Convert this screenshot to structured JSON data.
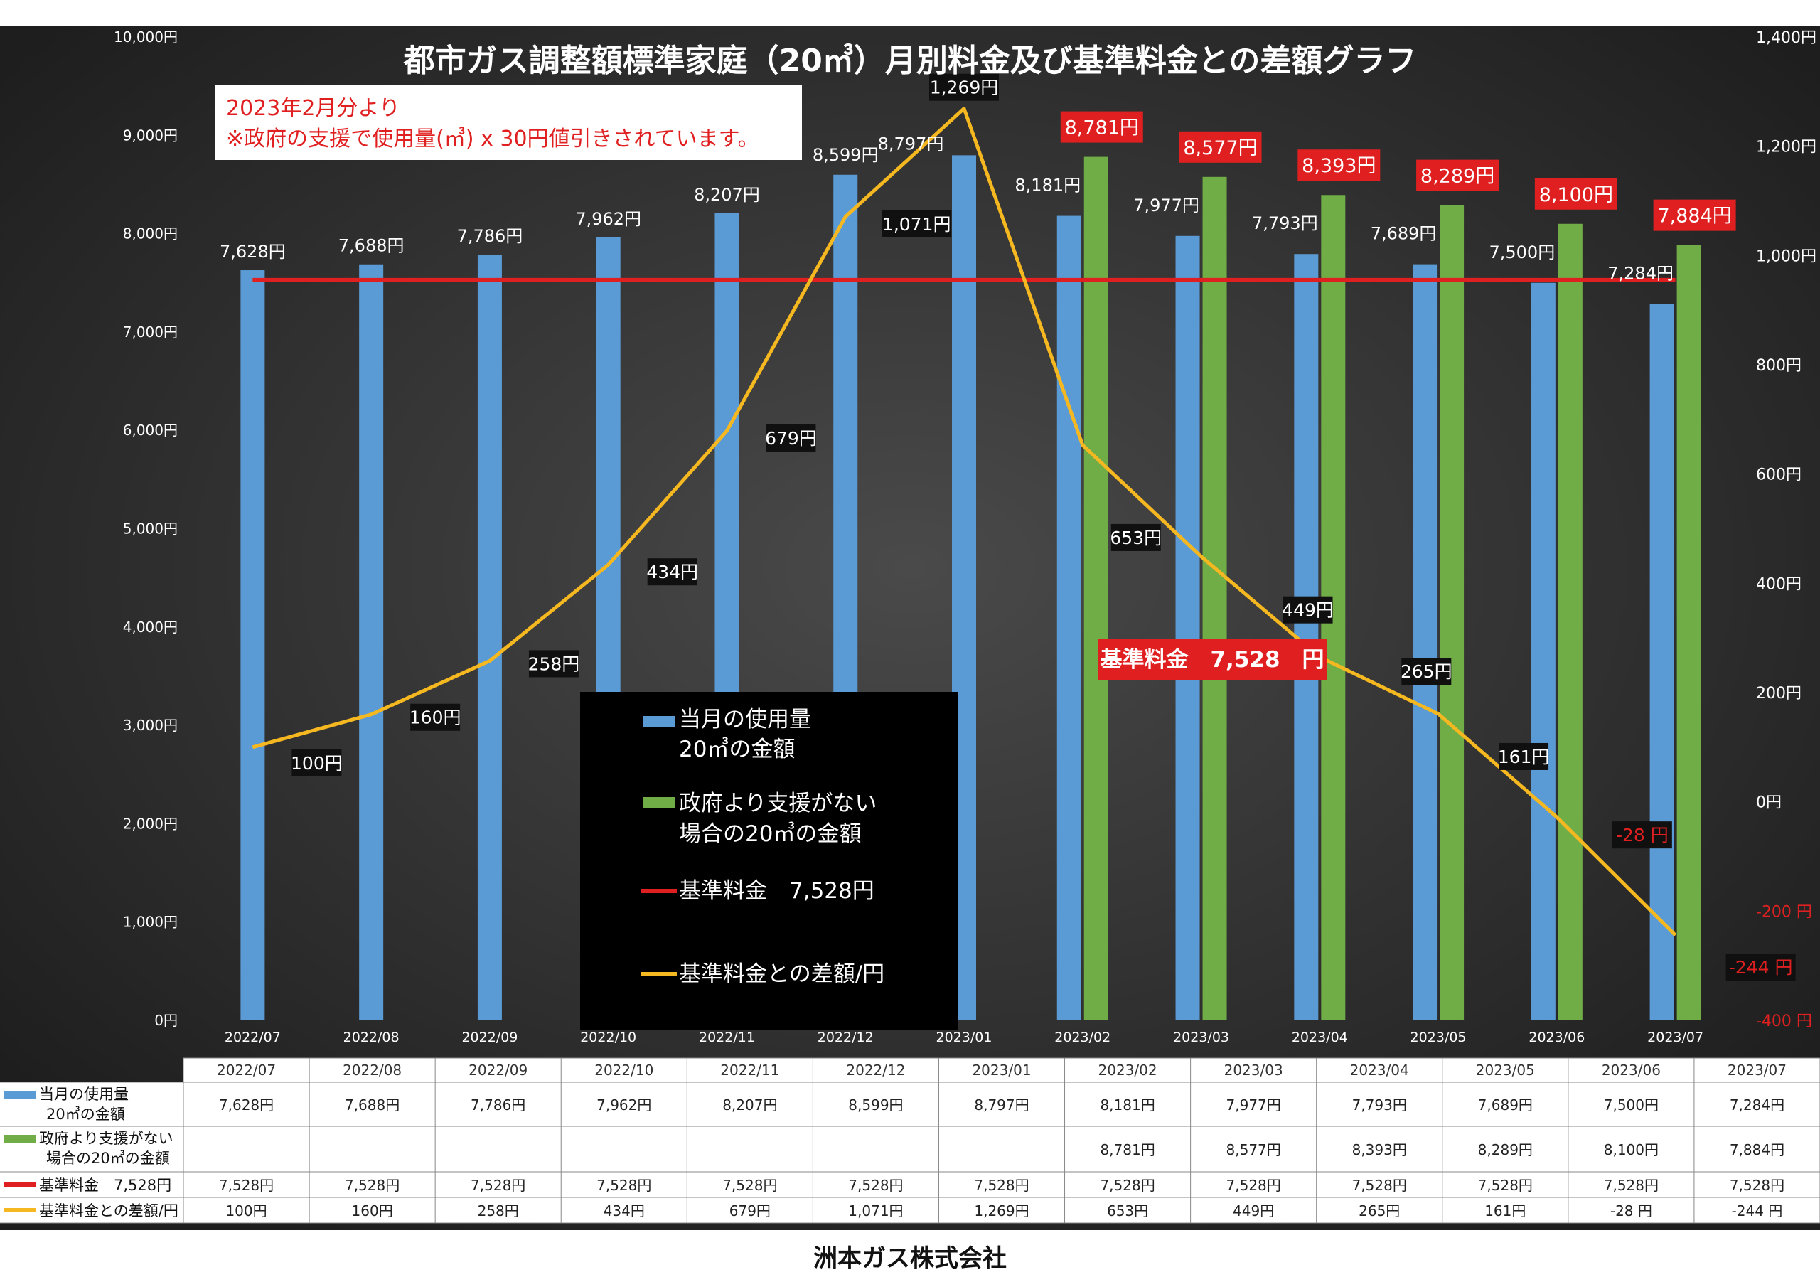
{
  "chart_data": {
    "type": "bar",
    "title": "都市ガス調整額標準家庭（20㎥）月別料金及び基準料金との差額グラフ",
    "note": [
      "2023年2月分より",
      "※政府の支援で使用量(㎥) x 30円値引きされています。"
    ],
    "categories": [
      "2022/07",
      "2022/08",
      "2022/09",
      "2022/10",
      "2022/11",
      "2022/12",
      "2023/01",
      "2023/02",
      "2023/03",
      "2023/04",
      "2023/05",
      "2023/06",
      "2023/07"
    ],
    "left_axis": {
      "min": 0,
      "max": 10000,
      "step": 1000,
      "ticks": [
        "0円",
        "1,000円",
        "2,000円",
        "3,000円",
        "4,000円",
        "5,000円",
        "6,000円",
        "7,000円",
        "8,000円",
        "9,000円",
        "10,000円"
      ]
    },
    "right_axis": {
      "min": -400,
      "max": 1400,
      "step": 200,
      "ticks": [
        "-400 円",
        "-200 円",
        "0円",
        "200円",
        "400円",
        "600円",
        "800円",
        "1,000円",
        "1,200円",
        "1,400円"
      ],
      "negative_color": "#e02020"
    },
    "series": [
      {
        "name": "当月の使用量\n20㎥の金額",
        "type": "bar",
        "axis": "left",
        "color": "#5b9bd5",
        "values": [
          7628,
          7688,
          7786,
          7962,
          8207,
          8599,
          8797,
          8181,
          7977,
          7793,
          7689,
          7500,
          7284
        ],
        "labels": [
          "7,628円",
          "7,688円",
          "7,786円",
          "7,962円",
          "8,207円",
          "8,599円",
          "8,797円",
          "8,181円",
          "7,977円",
          "7,793円",
          "7,689円",
          "7,500円",
          "7,284円"
        ]
      },
      {
        "name": "政府より支援がない\n場合の20㎥の金額",
        "type": "bar",
        "axis": "left",
        "color": "#70ad47",
        "values": [
          null,
          null,
          null,
          null,
          null,
          null,
          null,
          8781,
          8577,
          8393,
          8289,
          8100,
          7884
        ],
        "labels": [
          "",
          "",
          "",
          "",
          "",
          "",
          "",
          "8,781円",
          "8,577円",
          "8,393円",
          "8,289円",
          "8,100円",
          "7,884円"
        ]
      },
      {
        "name": "基準料金　7,528円",
        "type": "line",
        "axis": "left",
        "color": "#e02020",
        "values": [
          7528,
          7528,
          7528,
          7528,
          7528,
          7528,
          7528,
          7528,
          7528,
          7528,
          7528,
          7528,
          7528
        ],
        "labels": [
          "7,528円",
          "7,528円",
          "7,528円",
          "7,528円",
          "7,528円",
          "7,528円",
          "7,528円",
          "7,528円",
          "7,528円",
          "7,528円",
          "7,528円",
          "7,528円",
          "7,528円"
        ]
      },
      {
        "name": "基準料金との差額/円",
        "type": "line",
        "axis": "right",
        "color": "#f5b820",
        "values": [
          100,
          160,
          258,
          434,
          679,
          1071,
          1269,
          653,
          449,
          265,
          161,
          -28,
          -244
        ],
        "labels": [
          "100円",
          "160円",
          "258円",
          "434円",
          "679円",
          "1,071円",
          "1,269円",
          "653円",
          "449円",
          "265円",
          "161円",
          "-28 円",
          "-244 円"
        ]
      }
    ],
    "legend": {
      "placement": "center",
      "items": [
        "当月の使用量",
        "20㎥の金額",
        "政府より支援がない",
        "場合の20㎥の金額",
        "基準料金　7,528円",
        "基準料金との差額/円"
      ]
    },
    "callout": "基準料金　7,528　円",
    "table": {
      "row_labels": [
        [
          "当月の使用量",
          "20㎥の金額"
        ],
        [
          "政府より支援がない",
          "場合の20㎥の金額"
        ],
        [
          "基準料金　7,528円"
        ],
        [
          "基準料金との差額/円"
        ]
      ]
    }
  },
  "footer": "洲本ガス株式会社",
  "colors": {
    "background": "#2b2b2b",
    "blue_bar": "#5b9bd5",
    "green_bar": "#70ad47",
    "base_line": "#e02020",
    "diff_line": "#f5b820"
  }
}
